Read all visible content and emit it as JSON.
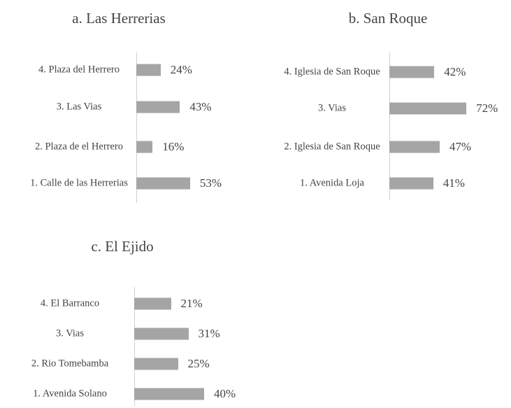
{
  "chart_data": [
    {
      "type": "bar",
      "title": "a. Las Herrerias",
      "categories": [
        "4.  Plaza del Herrero",
        "3.  Las Vias",
        "2. Plaza de el Herrero",
        "1. Calle de las Herrerias"
      ],
      "values": [
        24,
        43,
        16,
        53
      ],
      "value_labels": [
        "24%",
        "43%",
        "16%",
        "53%"
      ],
      "color": "#a5a5a5"
    },
    {
      "type": "bar",
      "title": "b. San Roque",
      "categories": [
        "4. Iglesia de San Roque",
        "3. Vias",
        "2. Iglesia de San Roque",
        "1. Avenida Loja"
      ],
      "values": [
        42,
        72,
        47,
        41
      ],
      "value_labels": [
        "42%",
        "72%",
        "47%",
        "41%"
      ],
      "color": "#a5a5a5"
    },
    {
      "type": "bar",
      "title": "c. El Ejido",
      "categories": [
        "4.  El Barranco",
        "3.  Vias",
        "2. Rio Tomebamba",
        "1. Avenida Solano"
      ],
      "values": [
        21,
        31,
        25,
        40
      ],
      "value_labels": [
        "21%",
        "31%",
        "25%",
        "40%"
      ],
      "color": "#a5a5a5"
    }
  ]
}
